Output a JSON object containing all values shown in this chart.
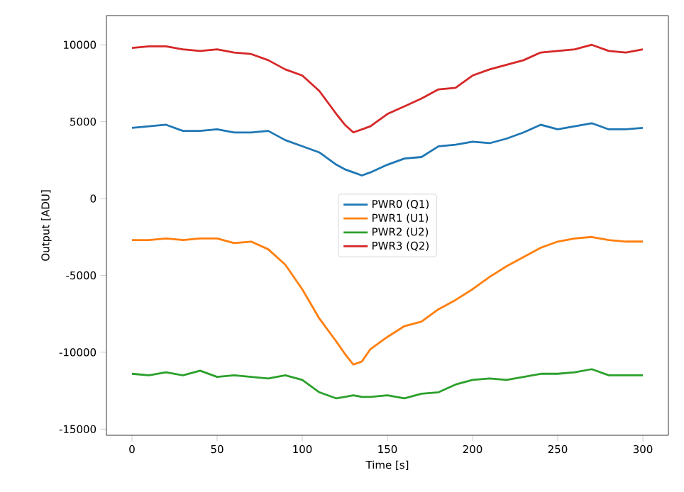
{
  "chart_data": {
    "type": "line",
    "xlabel": "Time [s]",
    "ylabel": "Output [ADU]",
    "x": [
      0,
      10,
      20,
      30,
      40,
      50,
      60,
      70,
      80,
      90,
      100,
      110,
      120,
      125,
      130,
      135,
      140,
      150,
      160,
      170,
      180,
      190,
      200,
      210,
      220,
      230,
      240,
      250,
      260,
      270,
      280,
      290,
      300
    ],
    "series": [
      {
        "name": "PWR0 (Q1)",
        "color": "#1f77b4",
        "values": [
          4600,
          4700,
          4800,
          4400,
          4400,
          4500,
          4300,
          4300,
          4400,
          3800,
          3400,
          3000,
          2200,
          1900,
          1700,
          1500,
          1700,
          2200,
          2600,
          2700,
          3400,
          3500,
          3700,
          3600,
          3900,
          4300,
          4800,
          4500,
          4700,
          4900,
          4500,
          4500,
          4600
        ]
      },
      {
        "name": "PWR1 (U1)",
        "color": "#ff7f0e",
        "values": [
          -2700,
          -2700,
          -2600,
          -2700,
          -2600,
          -2600,
          -2900,
          -2800,
          -3300,
          -4300,
          -5900,
          -7800,
          -9300,
          -10100,
          -10800,
          -10600,
          -9800,
          -9000,
          -8300,
          -8000,
          -7200,
          -6600,
          -5900,
          -5100,
          -4400,
          -3800,
          -3200,
          -2800,
          -2600,
          -2500,
          -2700,
          -2800,
          -2800
        ]
      },
      {
        "name": "PWR2 (U2)",
        "color": "#2ca02c",
        "values": [
          -11400,
          -11500,
          -11300,
          -11500,
          -11200,
          -11600,
          -11500,
          -11600,
          -11700,
          -11500,
          -11800,
          -12600,
          -13000,
          -12900,
          -12800,
          -12900,
          -12900,
          -12800,
          -13000,
          -12700,
          -12600,
          -12100,
          -11800,
          -11700,
          -11800,
          -11600,
          -11400,
          -11400,
          -11300,
          -11100,
          -11500,
          -11500,
          -11500
        ]
      },
      {
        "name": "PWR3 (Q2)",
        "color": "#d62728",
        "values": [
          9800,
          9900,
          9900,
          9700,
          9600,
          9700,
          9500,
          9400,
          9000,
          8400,
          8000,
          7000,
          5500,
          4800,
          4300,
          4500,
          4700,
          5500,
          6000,
          6500,
          7100,
          7200,
          8000,
          8400,
          8700,
          9000,
          9500,
          9600,
          9700,
          10000,
          9600,
          9500,
          9700
        ]
      }
    ],
    "xlim": [
      -15,
      315
    ],
    "ylim": [
      -15400,
      11900
    ],
    "xticks": [
      0,
      50,
      100,
      150,
      200,
      250,
      300
    ],
    "yticks": [
      -15000,
      -10000,
      -5000,
      0,
      5000,
      10000
    ],
    "legend": "center"
  }
}
